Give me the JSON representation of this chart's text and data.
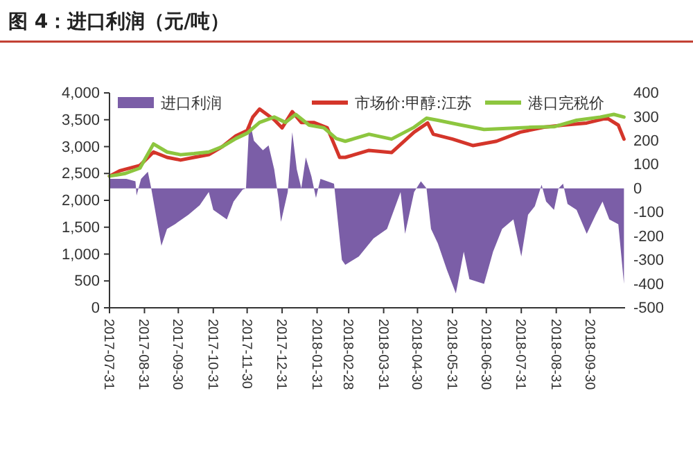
{
  "chart_data": {
    "type": "line",
    "title": "图 4：进口利润（元/吨）",
    "legend": "top",
    "grid": false,
    "marker": "none",
    "line_style": "solid",
    "xlim": [
      "2017-07-31",
      "2018-10-31"
    ],
    "xticks": [
      "2017-07-31",
      "2017-08-31",
      "2017-09-30",
      "2017-10-31",
      "2017-11-30",
      "2017-12-31",
      "2018-01-31",
      "2018-02-28",
      "2018-03-31",
      "2018-04-30",
      "2018-05-31",
      "2018-06-30",
      "2018-07-31",
      "2018-08-31",
      "2018-09-30"
    ],
    "ylim": [
      0,
      4000
    ],
    "yticks": [
      {
        "value": 0,
        "label": "0"
      },
      {
        "value": 500,
        "label": "500"
      },
      {
        "value": 1000,
        "label": "1,000"
      },
      {
        "value": 1500,
        "label": "1,500"
      },
      {
        "value": 2000,
        "label": "2,000"
      },
      {
        "value": 2500,
        "label": "2,500"
      },
      {
        "value": 3000,
        "label": "3,000"
      },
      {
        "value": 3500,
        "label": "3,500"
      },
      {
        "value": 4000,
        "label": "4,000"
      }
    ],
    "y2lim": [
      -500,
      400
    ],
    "y2ticks": [
      -500,
      -400,
      -300,
      -200,
      -100,
      0,
      100,
      200,
      300,
      400
    ],
    "series": [
      {
        "name": "进口利润",
        "type": "area",
        "axis": "y2",
        "color": "#7b5ea7",
        "x": [
          "2017-07-31",
          "2017-08-15",
          "2017-08-23",
          "2017-08-24",
          "2017-08-28",
          "2017-09-03",
          "2017-09-06",
          "2017-09-15",
          "2017-09-20",
          "2017-09-27",
          "2017-10-09",
          "2017-10-19",
          "2017-10-27",
          "2017-10-31",
          "2017-11-12",
          "2017-11-18",
          "2017-11-26",
          "2017-11-29",
          "2017-12-02",
          "2017-12-06",
          "2017-12-14",
          "2017-12-19",
          "2017-12-24",
          "2017-12-28",
          "2017-12-30",
          "2018-01-05",
          "2018-01-09",
          "2018-01-13",
          "2018-01-17",
          "2018-01-21",
          "2018-01-26",
          "2018-01-30",
          "2018-02-03",
          "2018-02-15",
          "2018-02-22",
          "2018-02-25",
          "2018-03-09",
          "2018-03-22",
          "2018-04-03",
          "2018-04-15",
          "2018-04-19",
          "2018-04-27",
          "2018-05-03",
          "2018-05-08",
          "2018-05-12",
          "2018-05-18",
          "2018-05-26",
          "2018-06-03",
          "2018-06-10",
          "2018-06-15",
          "2018-06-28",
          "2018-07-06",
          "2018-07-14",
          "2018-07-24",
          "2018-07-31",
          "2018-08-06",
          "2018-08-12",
          "2018-08-18",
          "2018-08-22",
          "2018-08-29",
          "2018-09-02",
          "2018-09-06",
          "2018-09-10",
          "2018-09-18",
          "2018-09-27",
          "2018-10-05",
          "2018-10-11",
          "2018-10-17",
          "2018-10-25",
          "2018-10-30"
        ],
        "values": [
          40,
          40,
          30,
          -30,
          40,
          70,
          0,
          -240,
          -170,
          -150,
          -110,
          -70,
          -15,
          -90,
          -130,
          -55,
          -5,
          0,
          290,
          200,
          160,
          180,
          80,
          -50,
          -140,
          -15,
          235,
          80,
          0,
          130,
          50,
          -40,
          40,
          20,
          -300,
          -320,
          -285,
          -210,
          -170,
          -15,
          -190,
          -15,
          30,
          0,
          -170,
          -230,
          -340,
          -440,
          -265,
          -380,
          -400,
          -265,
          -170,
          -130,
          -285,
          -110,
          -75,
          15,
          -55,
          -90,
          0,
          20,
          -65,
          -90,
          -190,
          -110,
          -55,
          -130,
          -150,
          -400
        ]
      },
      {
        "name": "市场价:甲醇:江苏",
        "type": "line",
        "color": "#d4352a",
        "x": [
          "2017-07-31",
          "2017-08-09",
          "2017-08-27",
          "2017-09-08",
          "2017-09-20",
          "2017-10-02",
          "2017-10-14",
          "2017-10-27",
          "2017-11-08",
          "2017-11-20",
          "2017-11-30",
          "2017-12-05",
          "2017-12-11",
          "2017-12-24",
          "2017-12-31",
          "2018-01-09",
          "2018-01-17",
          "2018-01-28",
          "2018-02-09",
          "2018-02-20",
          "2018-02-25",
          "2018-03-18",
          "2018-04-07",
          "2018-04-27",
          "2018-05-09",
          "2018-05-14",
          "2018-05-31",
          "2018-06-18",
          "2018-07-09",
          "2018-07-30",
          "2018-08-20",
          "2018-09-06",
          "2018-09-27",
          "2018-10-15",
          "2018-10-25",
          "2018-10-30"
        ],
        "values": [
          2450,
          2550,
          2650,
          2900,
          2800,
          2750,
          2800,
          2850,
          3000,
          3200,
          3300,
          3550,
          3700,
          3500,
          3350,
          3650,
          3450,
          3450,
          3350,
          2800,
          2800,
          2930,
          2890,
          3270,
          3440,
          3230,
          3140,
          3020,
          3100,
          3270,
          3360,
          3400,
          3440,
          3530,
          3400,
          3140
        ]
      },
      {
        "name": "港口完税价",
        "type": "line",
        "color": "#8dc63f",
        "x": [
          "2017-07-31",
          "2017-08-14",
          "2017-08-27",
          "2017-09-08",
          "2017-09-20",
          "2017-10-02",
          "2017-10-14",
          "2017-10-27",
          "2017-11-08",
          "2017-11-20",
          "2017-11-30",
          "2017-12-11",
          "2017-12-24",
          "2018-01-03",
          "2018-01-12",
          "2018-01-24",
          "2018-02-06",
          "2018-02-17",
          "2018-02-25",
          "2018-03-18",
          "2018-04-07",
          "2018-04-27",
          "2018-05-08",
          "2018-05-18",
          "2018-06-08",
          "2018-06-28",
          "2018-07-18",
          "2018-08-08",
          "2018-08-29",
          "2018-09-18",
          "2018-10-09",
          "2018-10-21",
          "2018-10-30"
        ],
        "values": [
          2450,
          2500,
          2600,
          3050,
          2900,
          2850,
          2870,
          2900,
          3000,
          3150,
          3250,
          3450,
          3550,
          3450,
          3600,
          3400,
          3350,
          3150,
          3100,
          3230,
          3140,
          3360,
          3530,
          3490,
          3400,
          3320,
          3340,
          3360,
          3370,
          3490,
          3550,
          3600,
          3550
        ]
      }
    ]
  }
}
